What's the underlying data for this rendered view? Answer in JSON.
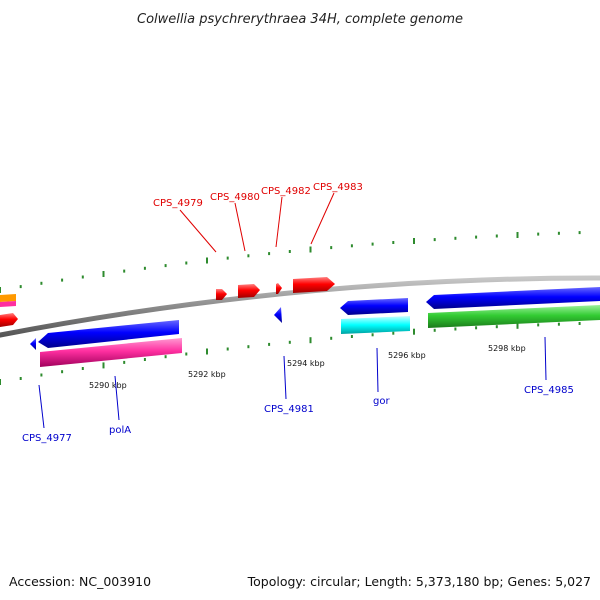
{
  "title": "Colwellia psychrerythraea 34H, complete genome",
  "footer": {
    "accession": "Accession: NC_003910",
    "summary": "Topology: circular; Length: 5,373,180 bp; Genes: 5,027"
  },
  "scale": {
    "ticks": [
      "5290 kbp",
      "5292 kbp",
      "5294 kbp",
      "5296 kbp",
      "5298 kbp"
    ]
  },
  "labels_top": [
    "CPS_4979",
    "CPS_4980",
    "CPS_4982",
    "CPS_4983"
  ],
  "labels_bottom": [
    "CPS_4977",
    "polA",
    "CPS_4981",
    "gor",
    "CPS_4985"
  ],
  "colors": {
    "forward_gene": "#ff0000",
    "reverse_gene": "#0000ff",
    "cds_pink": "#ff2fa0",
    "cds_cyan": "#00ffff",
    "cds_green": "#33cc33",
    "orange": "#ff9900",
    "backbone": "#8a8a8a",
    "gc_dots": "#2e8b2e",
    "top_label": "#e00000",
    "bottom_label": "#0000cc"
  }
}
